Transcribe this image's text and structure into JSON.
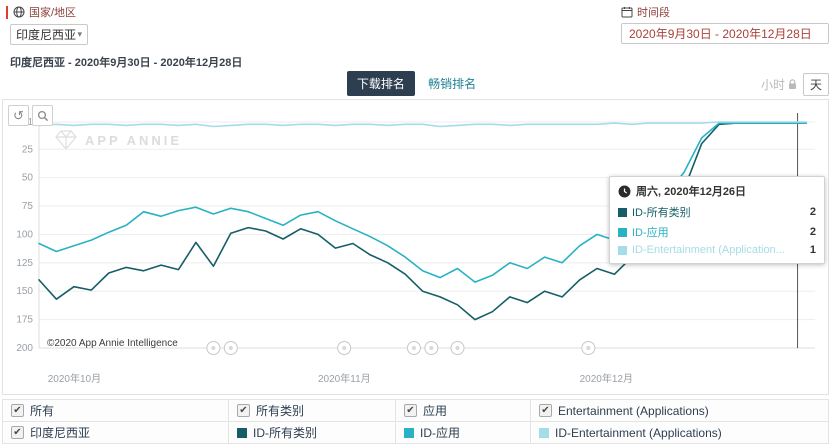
{
  "header": {
    "country_label": "国家/地区",
    "country_value": "印度尼西亚",
    "period_label": "时间段",
    "period_value": "2020年9月30日 - 2020年12月28日",
    "subtitle": "印度尼西亚 - 2020年9月30日 - 2020年12月28日"
  },
  "tabs": {
    "download_label": "下载排名",
    "grossing_label": "畅销排名",
    "hour_label": "小时",
    "day_label": "天"
  },
  "chart_data": {
    "type": "line",
    "watermark": "APP ANNIE",
    "copyright": "©2020 App Annie Intelligence",
    "y_ticks": [
      1,
      25,
      50,
      75,
      100,
      125,
      150,
      175,
      200
    ],
    "ylim": [
      1,
      200
    ],
    "y_inverted": true,
    "x_tick_labels": [
      "2020年10月",
      "2020年11月",
      "2020年12月"
    ],
    "x_tick_days": [
      1,
      32,
      62
    ],
    "x_range_days": [
      0,
      89
    ],
    "crosshair_day": 87,
    "event_marker_days": [
      20,
      22,
      35,
      43,
      45,
      48,
      63
    ],
    "days": [
      0,
      2,
      4,
      6,
      8,
      10,
      12,
      14,
      16,
      18,
      20,
      22,
      24,
      26,
      28,
      30,
      32,
      34,
      36,
      38,
      40,
      42,
      44,
      46,
      48,
      50,
      52,
      54,
      56,
      58,
      60,
      62,
      64,
      66,
      68,
      70,
      72,
      74,
      76,
      78,
      80,
      82,
      84,
      86,
      88
    ],
    "series": [
      {
        "name": "ID-所有类别",
        "color": "#155e68",
        "values": [
          140,
          157,
          146,
          149,
          134,
          129,
          132,
          127,
          131,
          107,
          128,
          99,
          94,
          97,
          104,
          95,
          100,
          112,
          108,
          118,
          125,
          135,
          150,
          155,
          162,
          175,
          168,
          155,
          160,
          150,
          155,
          140,
          130,
          135,
          120,
          110,
          90,
          60,
          20,
          3,
          2,
          2,
          2,
          2,
          2
        ]
      },
      {
        "name": "ID-应用",
        "color": "#29b2c3",
        "values": [
          108,
          115,
          110,
          105,
          98,
          92,
          80,
          84,
          79,
          76,
          82,
          77,
          80,
          86,
          92,
          83,
          80,
          88,
          95,
          102,
          110,
          120,
          132,
          138,
          130,
          142,
          136,
          125,
          130,
          120,
          125,
          110,
          100,
          105,
          90,
          80,
          65,
          45,
          15,
          2,
          2,
          2,
          2,
          2,
          2
        ]
      },
      {
        "name": "ID-Entertainment (Applications)",
        "color": "#a4dde8",
        "values": [
          4,
          3,
          4,
          3,
          3,
          4,
          3,
          3,
          4,
          3,
          5,
          4,
          3,
          3,
          4,
          3,
          3,
          4,
          3,
          3,
          4,
          3,
          3,
          5,
          4,
          3,
          3,
          4,
          3,
          3,
          3,
          3,
          3,
          2,
          3,
          2,
          2,
          2,
          2,
          1,
          1,
          1,
          1,
          1,
          1
        ]
      }
    ]
  },
  "tooltip": {
    "title": "周六, 2020年12月26日",
    "rows": [
      {
        "label": "ID-所有类别",
        "value": "2",
        "color": "#155e68"
      },
      {
        "label": "ID-应用",
        "value": "2",
        "color": "#29b2c3"
      },
      {
        "label": "ID-Entertainment (Application...",
        "value": "1",
        "color": "#a4dde8"
      }
    ]
  },
  "legend": {
    "row1": [
      {
        "label": "所有",
        "checked": true
      },
      {
        "label": "所有类别",
        "checked": true
      },
      {
        "label": "应用",
        "checked": true
      },
      {
        "label": "Entertainment (Applications)",
        "checked": true
      }
    ],
    "row2": [
      {
        "label": "印度尼西亚",
        "checked": true
      },
      {
        "label": "ID-所有类别",
        "color": "#155e68"
      },
      {
        "label": "ID-应用",
        "color": "#29b2c3"
      },
      {
        "label": "ID-Entertainment (Applications)",
        "color": "#a4dde8"
      }
    ]
  }
}
